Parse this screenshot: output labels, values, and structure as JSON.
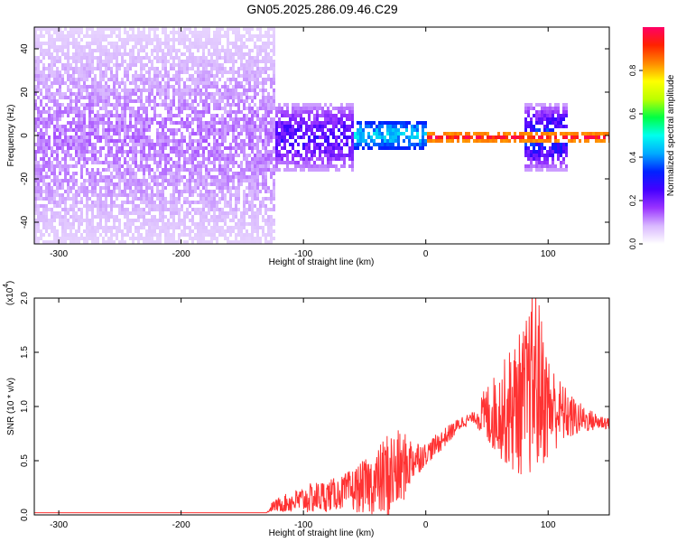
{
  "title": "GN05.2025.286.09.46.C29",
  "chart_data": [
    {
      "type": "heatmap",
      "xlabel": "Height of straight line (km)",
      "ylabel": "Frequency (Hz)",
      "xlim": [
        -320,
        150
      ],
      "ylim": [
        -50,
        50
      ],
      "xticks": [
        -300,
        -200,
        -100,
        0,
        100
      ],
      "yticks": [
        -40,
        -20,
        0,
        20,
        40
      ],
      "colorbar": {
        "label": "Normalized spectral amplitude",
        "range": [
          0,
          1
        ],
        "ticks": [
          0.0,
          0.2,
          0.4,
          0.6,
          0.8
        ],
        "tick_labels": [
          "0.0",
          "0.2",
          "0.4",
          "0.6",
          "0.8"
        ],
        "colormap": [
          "#ffffff",
          "#d9b8ff",
          "#9933ff",
          "#4400ff",
          "#0022ff",
          "#00aaff",
          "#00ffee",
          "#00ff44",
          "#bbff00",
          "#ffff00",
          "#ff8800",
          "#ff2200",
          "#ff0066"
        ]
      },
      "regions": [
        {
          "x_range": [
            -320,
            -125
          ],
          "freq_spread": [
            -50,
            50
          ],
          "amplitude": [
            0.05,
            0.15
          ],
          "description_level": "noise"
        },
        {
          "x_range": [
            -125,
            -60
          ],
          "freq_spread": [
            -15,
            15
          ],
          "amplitude": [
            0.1,
            0.3
          ]
        },
        {
          "x_range": [
            -60,
            0
          ],
          "freq_spread": [
            -6,
            8
          ],
          "amplitude": [
            0.3,
            0.5
          ]
        },
        {
          "x_range": [
            0,
            150
          ],
          "freq_spread": [
            -2,
            2
          ],
          "amplitude": [
            0.8,
            1.0
          ]
        },
        {
          "x_range": [
            80,
            115
          ],
          "freq_spread": [
            -15,
            15
          ],
          "amplitude": [
            0.1,
            0.4
          ]
        }
      ],
      "grid": false
    },
    {
      "type": "line",
      "xlabel": "Height of straight line (km)",
      "ylabel": "SNR (10 * v/v)",
      "scale_label": "(x10",
      "scale_exp": "4",
      "scale_close": ")",
      "xlim": [
        -320,
        150
      ],
      "ylim": [
        0,
        2.0
      ],
      "xticks": [
        -300,
        -200,
        -100,
        0,
        100
      ],
      "yticks": [
        0.0,
        0.5,
        1.0,
        1.5,
        2.0
      ],
      "ytick_labels": [
        "0.0",
        "0.5",
        "1.0",
        "1.5",
        "2.0"
      ],
      "series": [
        {
          "color": "#ff3333",
          "x": [
            -320,
            -200,
            -130,
            -125,
            -110,
            -90,
            -70,
            -50,
            -40,
            -30,
            -20,
            -10,
            0,
            10,
            20,
            30,
            40,
            50,
            60,
            70,
            80,
            90,
            100,
            110,
            120,
            130,
            140,
            150
          ],
          "y": [
            0.02,
            0.02,
            0.02,
            0.08,
            0.12,
            0.16,
            0.2,
            0.26,
            0.3,
            0.36,
            0.42,
            0.52,
            0.56,
            0.66,
            0.76,
            0.86,
            0.9,
            0.92,
            0.94,
            0.98,
            1.05,
            1.25,
            1.0,
            0.95,
            0.9,
            0.88,
            0.86,
            0.85
          ],
          "envelope": [
            0.0,
            0.0,
            0.0,
            0.05,
            0.1,
            0.15,
            0.15,
            0.25,
            0.3,
            0.45,
            0.35,
            0.2,
            0.1,
            0.1,
            0.08,
            0.06,
            0.05,
            0.3,
            0.4,
            0.6,
            0.7,
            0.9,
            0.5,
            0.3,
            0.2,
            0.12,
            0.08,
            0.06
          ]
        }
      ],
      "grid": false
    }
  ]
}
